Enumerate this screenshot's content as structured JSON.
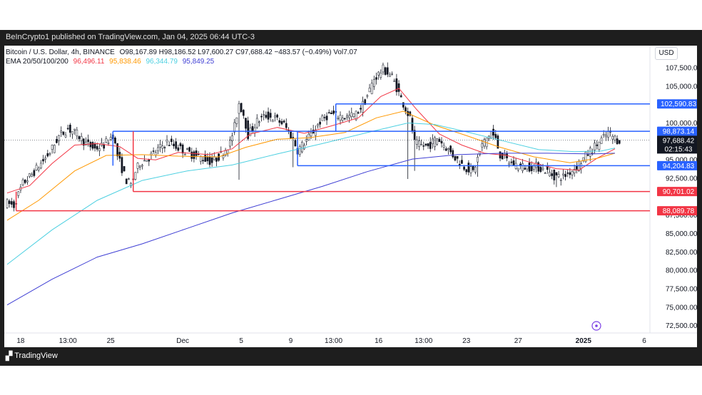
{
  "publisher": "BeInCrypto1 published on TradingView.com, Jan 04, 2025 06:44 UTC-3",
  "brand": "TradingView",
  "legend": {
    "symbol": "Bitcoin / U.S. Dollar, 4h, BINANCE",
    "ohlc": "O98,167.89 H98,186.52 L97,600.27 C97,688.42 −483.57 (−0.49%) Vol7.07",
    "ema_label": "EMA 20/50/100/200",
    "ema_values": [
      {
        "value": "96,496.11",
        "color": "#f23645"
      },
      {
        "value": "95,838.46",
        "color": "#ff9800"
      },
      {
        "value": "96,344.79",
        "color": "#4dd0e1"
      },
      {
        "value": "95,849.25",
        "color": "#3f3fd4"
      }
    ]
  },
  "currency": "USD",
  "chart_data": {
    "type": "candlestick",
    "y_axis": {
      "range": [
        71500,
        110500
      ],
      "ticks": [
        "107,500.00",
        "105,000.00",
        "100,000.00",
        "95,000.00",
        "92,500.00",
        "87,500.00",
        "85,000.00",
        "82,500.00",
        "80,000.00",
        "77,500.00",
        "75,000.00",
        "72,500.00"
      ],
      "tick_values": [
        107500,
        105000,
        100000,
        95000,
        92500,
        87500,
        85000,
        82500,
        80000,
        77500,
        75000,
        72500
      ]
    },
    "x_axis": {
      "ticks": [
        {
          "label": "18",
          "bar": 6
        },
        {
          "label": "13:00",
          "bar": 27
        },
        {
          "label": "25",
          "bar": 46
        },
        {
          "label": "Dec",
          "bar": 78
        },
        {
          "label": "5",
          "bar": 104
        },
        {
          "label": "9",
          "bar": 126
        },
        {
          "label": "13:00",
          "bar": 145
        },
        {
          "label": "16",
          "bar": 165
        },
        {
          "label": "13:00",
          "bar": 185
        },
        {
          "label": "23",
          "bar": 204
        },
        {
          "label": "27",
          "bar": 227
        },
        {
          "label": "2025",
          "bar": 256
        },
        {
          "label": "6",
          "bar": 283
        }
      ],
      "bars": 283
    },
    "price_path": [
      [
        0,
        89200
      ],
      [
        4,
        88800
      ],
      [
        8,
        91800
      ],
      [
        12,
        93000
      ],
      [
        16,
        94500
      ],
      [
        20,
        96000
      ],
      [
        24,
        98200
      ],
      [
        28,
        99200
      ],
      [
        32,
        98500
      ],
      [
        36,
        97200
      ],
      [
        40,
        96500
      ],
      [
        44,
        97000
      ],
      [
        48,
        98400
      ],
      [
        50,
        95600
      ],
      [
        52,
        93800
      ],
      [
        54,
        92200
      ],
      [
        56,
        91600
      ],
      [
        58,
        93400
      ],
      [
        60,
        94600
      ],
      [
        64,
        95300
      ],
      [
        68,
        96400
      ],
      [
        72,
        97400
      ],
      [
        76,
        96800
      ],
      [
        80,
        96200
      ],
      [
        84,
        95600
      ],
      [
        88,
        95200
      ],
      [
        92,
        94700
      ],
      [
        96,
        95700
      ],
      [
        100,
        97300
      ],
      [
        102,
        99500
      ],
      [
        104,
        102700
      ],
      [
        106,
        101200
      ],
      [
        108,
        98400
      ],
      [
        112,
        100200
      ],
      [
        116,
        101000
      ],
      [
        120,
        100600
      ],
      [
        124,
        99800
      ],
      [
        128,
        97800
      ],
      [
        130,
        96300
      ],
      [
        132,
        97000
      ],
      [
        136,
        98400
      ],
      [
        140,
        100200
      ],
      [
        144,
        101200
      ],
      [
        148,
        101000
      ],
      [
        152,
        100800
      ],
      [
        156,
        101200
      ],
      [
        160,
        103000
      ],
      [
        164,
        106000
      ],
      [
        168,
        107300
      ],
      [
        172,
        106300
      ],
      [
        176,
        103300
      ],
      [
        180,
        100600
      ],
      [
        182,
        97300
      ],
      [
        184,
        97000
      ],
      [
        188,
        96800
      ],
      [
        192,
        98000
      ],
      [
        196,
        96700
      ],
      [
        200,
        95300
      ],
      [
        204,
        94100
      ],
      [
        208,
        93400
      ],
      [
        212,
        97000
      ],
      [
        216,
        98800
      ],
      [
        218,
        97700
      ],
      [
        220,
        95700
      ],
      [
        224,
        94700
      ],
      [
        228,
        94200
      ],
      [
        232,
        94000
      ],
      [
        236,
        94100
      ],
      [
        240,
        93600
      ],
      [
        244,
        92800
      ],
      [
        248,
        92700
      ],
      [
        252,
        93600
      ],
      [
        256,
        94800
      ],
      [
        260,
        96200
      ],
      [
        264,
        97400
      ],
      [
        268,
        98600
      ],
      [
        272,
        97700
      ]
    ],
    "ema": [
      {
        "period": 20,
        "color": "#f23645",
        "points": [
          [
            0,
            90500
          ],
          [
            10,
            91500
          ],
          [
            20,
            94500
          ],
          [
            30,
            97000
          ],
          [
            40,
            97200
          ],
          [
            50,
            96800
          ],
          [
            58,
            95200
          ],
          [
            66,
            95000
          ],
          [
            76,
            96000
          ],
          [
            90,
            95700
          ],
          [
            100,
            96500
          ],
          [
            108,
            98500
          ],
          [
            120,
            99400
          ],
          [
            132,
            98600
          ],
          [
            144,
            99600
          ],
          [
            156,
            100700
          ],
          [
            166,
            103600
          ],
          [
            174,
            104700
          ],
          [
            182,
            101800
          ],
          [
            192,
            98500
          ],
          [
            202,
            97000
          ],
          [
            212,
            95900
          ],
          [
            222,
            95600
          ],
          [
            232,
            94700
          ],
          [
            244,
            93800
          ],
          [
            254,
            93600
          ],
          [
            262,
            95200
          ],
          [
            270,
            96500
          ]
        ]
      },
      {
        "period": 50,
        "color": "#ff9800",
        "points": [
          [
            0,
            86800
          ],
          [
            14,
            89500
          ],
          [
            30,
            93500
          ],
          [
            44,
            95600
          ],
          [
            60,
            95700
          ],
          [
            76,
            95500
          ],
          [
            94,
            95400
          ],
          [
            106,
            96700
          ],
          [
            120,
            97800
          ],
          [
            134,
            98000
          ],
          [
            150,
            98700
          ],
          [
            164,
            100700
          ],
          [
            176,
            101600
          ],
          [
            190,
            99700
          ],
          [
            204,
            98300
          ],
          [
            218,
            96800
          ],
          [
            234,
            95400
          ],
          [
            250,
            94600
          ],
          [
            262,
            95200
          ],
          [
            270,
            95900
          ]
        ]
      },
      {
        "period": 100,
        "color": "#4dd0e1",
        "points": [
          [
            0,
            80800
          ],
          [
            20,
            85500
          ],
          [
            40,
            89500
          ],
          [
            60,
            92200
          ],
          [
            80,
            93500
          ],
          [
            100,
            94300
          ],
          [
            120,
            95800
          ],
          [
            140,
            97200
          ],
          [
            160,
            98700
          ],
          [
            178,
            100000
          ],
          [
            190,
            99800
          ],
          [
            204,
            98800
          ],
          [
            220,
            97600
          ],
          [
            236,
            96400
          ],
          [
            252,
            96100
          ],
          [
            264,
            96200
          ],
          [
            270,
            96600
          ]
        ]
      },
      {
        "period": 200,
        "color": "#3f3fd4",
        "points": [
          [
            0,
            75300
          ],
          [
            20,
            78800
          ],
          [
            40,
            81800
          ],
          [
            60,
            83600
          ],
          [
            80,
            85700
          ],
          [
            100,
            87800
          ],
          [
            120,
            89600
          ],
          [
            140,
            91400
          ],
          [
            160,
            93400
          ],
          [
            180,
            95100
          ],
          [
            200,
            95700
          ],
          [
            220,
            95900
          ],
          [
            240,
            95900
          ],
          [
            260,
            95800
          ],
          [
            270,
            95900
          ]
        ]
      }
    ],
    "levels": [
      {
        "label": "102,590.83",
        "value": 102590.83,
        "color": "#2962ff",
        "start_bar": 146
      },
      {
        "label": "98,873.14",
        "value": 98873.14,
        "color": "#2962ff",
        "start_bar": 47
      },
      {
        "label": "94,204.83",
        "value": 94204.83,
        "color": "#2962ff",
        "start_bar": 129
      },
      {
        "label": "90,701.02",
        "value": 90701.02,
        "color": "#f23645",
        "start_bar": 56
      },
      {
        "label": "88,089.78",
        "value": 88089.78,
        "color": "#f23645",
        "start_bar": 4
      }
    ],
    "last_price": {
      "label": "97,688.42",
      "value": 97688.42,
      "countdown": "02:15:43"
    }
  }
}
